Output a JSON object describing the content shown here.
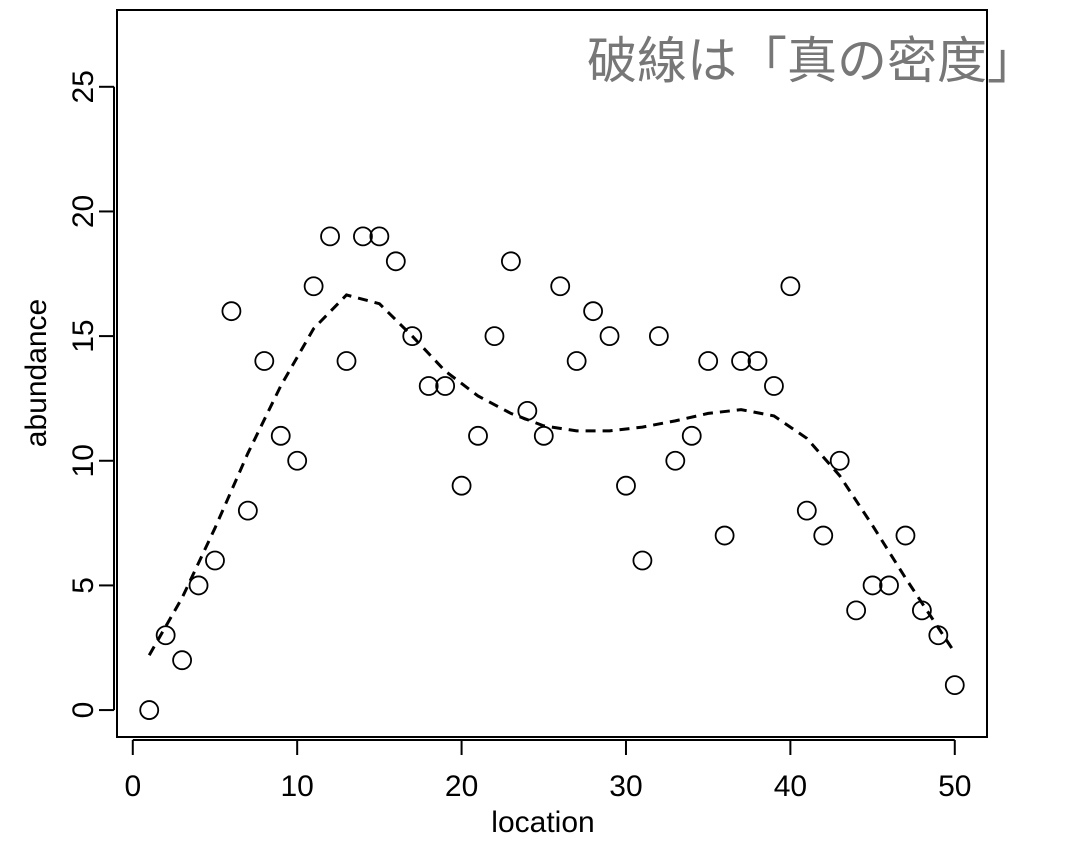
{
  "chart_data": {
    "type": "scatter",
    "title": "破線は「真の密度」",
    "x_label": "location",
    "y_label": "abundance",
    "x": [
      1,
      2,
      3,
      4,
      5,
      6,
      7,
      8,
      9,
      10,
      11,
      12,
      13,
      14,
      15,
      16,
      17,
      18,
      19,
      20,
      21,
      22,
      23,
      24,
      25,
      26,
      27,
      28,
      29,
      30,
      31,
      32,
      33,
      34,
      35,
      36,
      37,
      38,
      39,
      40,
      41,
      42,
      43,
      44,
      45,
      46,
      47,
      48,
      49,
      50
    ],
    "values": [
      0,
      3,
      2,
      5,
      6,
      16,
      8,
      14,
      11,
      10,
      17,
      19,
      14,
      19,
      19,
      18,
      15,
      13,
      13,
      9,
      11,
      15,
      18,
      12,
      11,
      17,
      14,
      16,
      15,
      9,
      6,
      15,
      10,
      11,
      14,
      7,
      14,
      14,
      13,
      17,
      8,
      7,
      10,
      4,
      5,
      5,
      7,
      4,
      3,
      1
    ],
    "color": "#000000",
    "curve_x": [
      1,
      3,
      5,
      7,
      9,
      11,
      13,
      15,
      17,
      19,
      21,
      23,
      25,
      27,
      29,
      31,
      33,
      35,
      37,
      39,
      41,
      43,
      45,
      47,
      49,
      50
    ],
    "curve_values": [
      2.2,
      4.5,
      7.3,
      10.3,
      13.0,
      15.3,
      16.65,
      16.3,
      15.0,
      13.6,
      12.6,
      11.9,
      11.4,
      11.2,
      11.2,
      11.35,
      11.6,
      11.9,
      12.05,
      11.8,
      10.9,
      9.4,
      7.4,
      5.3,
      3.3,
      2.3
    ],
    "curve_style": "dashed",
    "xlim": [
      -0.96,
      51.96
    ],
    "ylim": [
      -1.08,
      28.08
    ],
    "xticks": [
      0,
      10,
      20,
      30,
      40,
      50
    ],
    "yticks": [
      0,
      5,
      10,
      15,
      20,
      25
    ]
  }
}
